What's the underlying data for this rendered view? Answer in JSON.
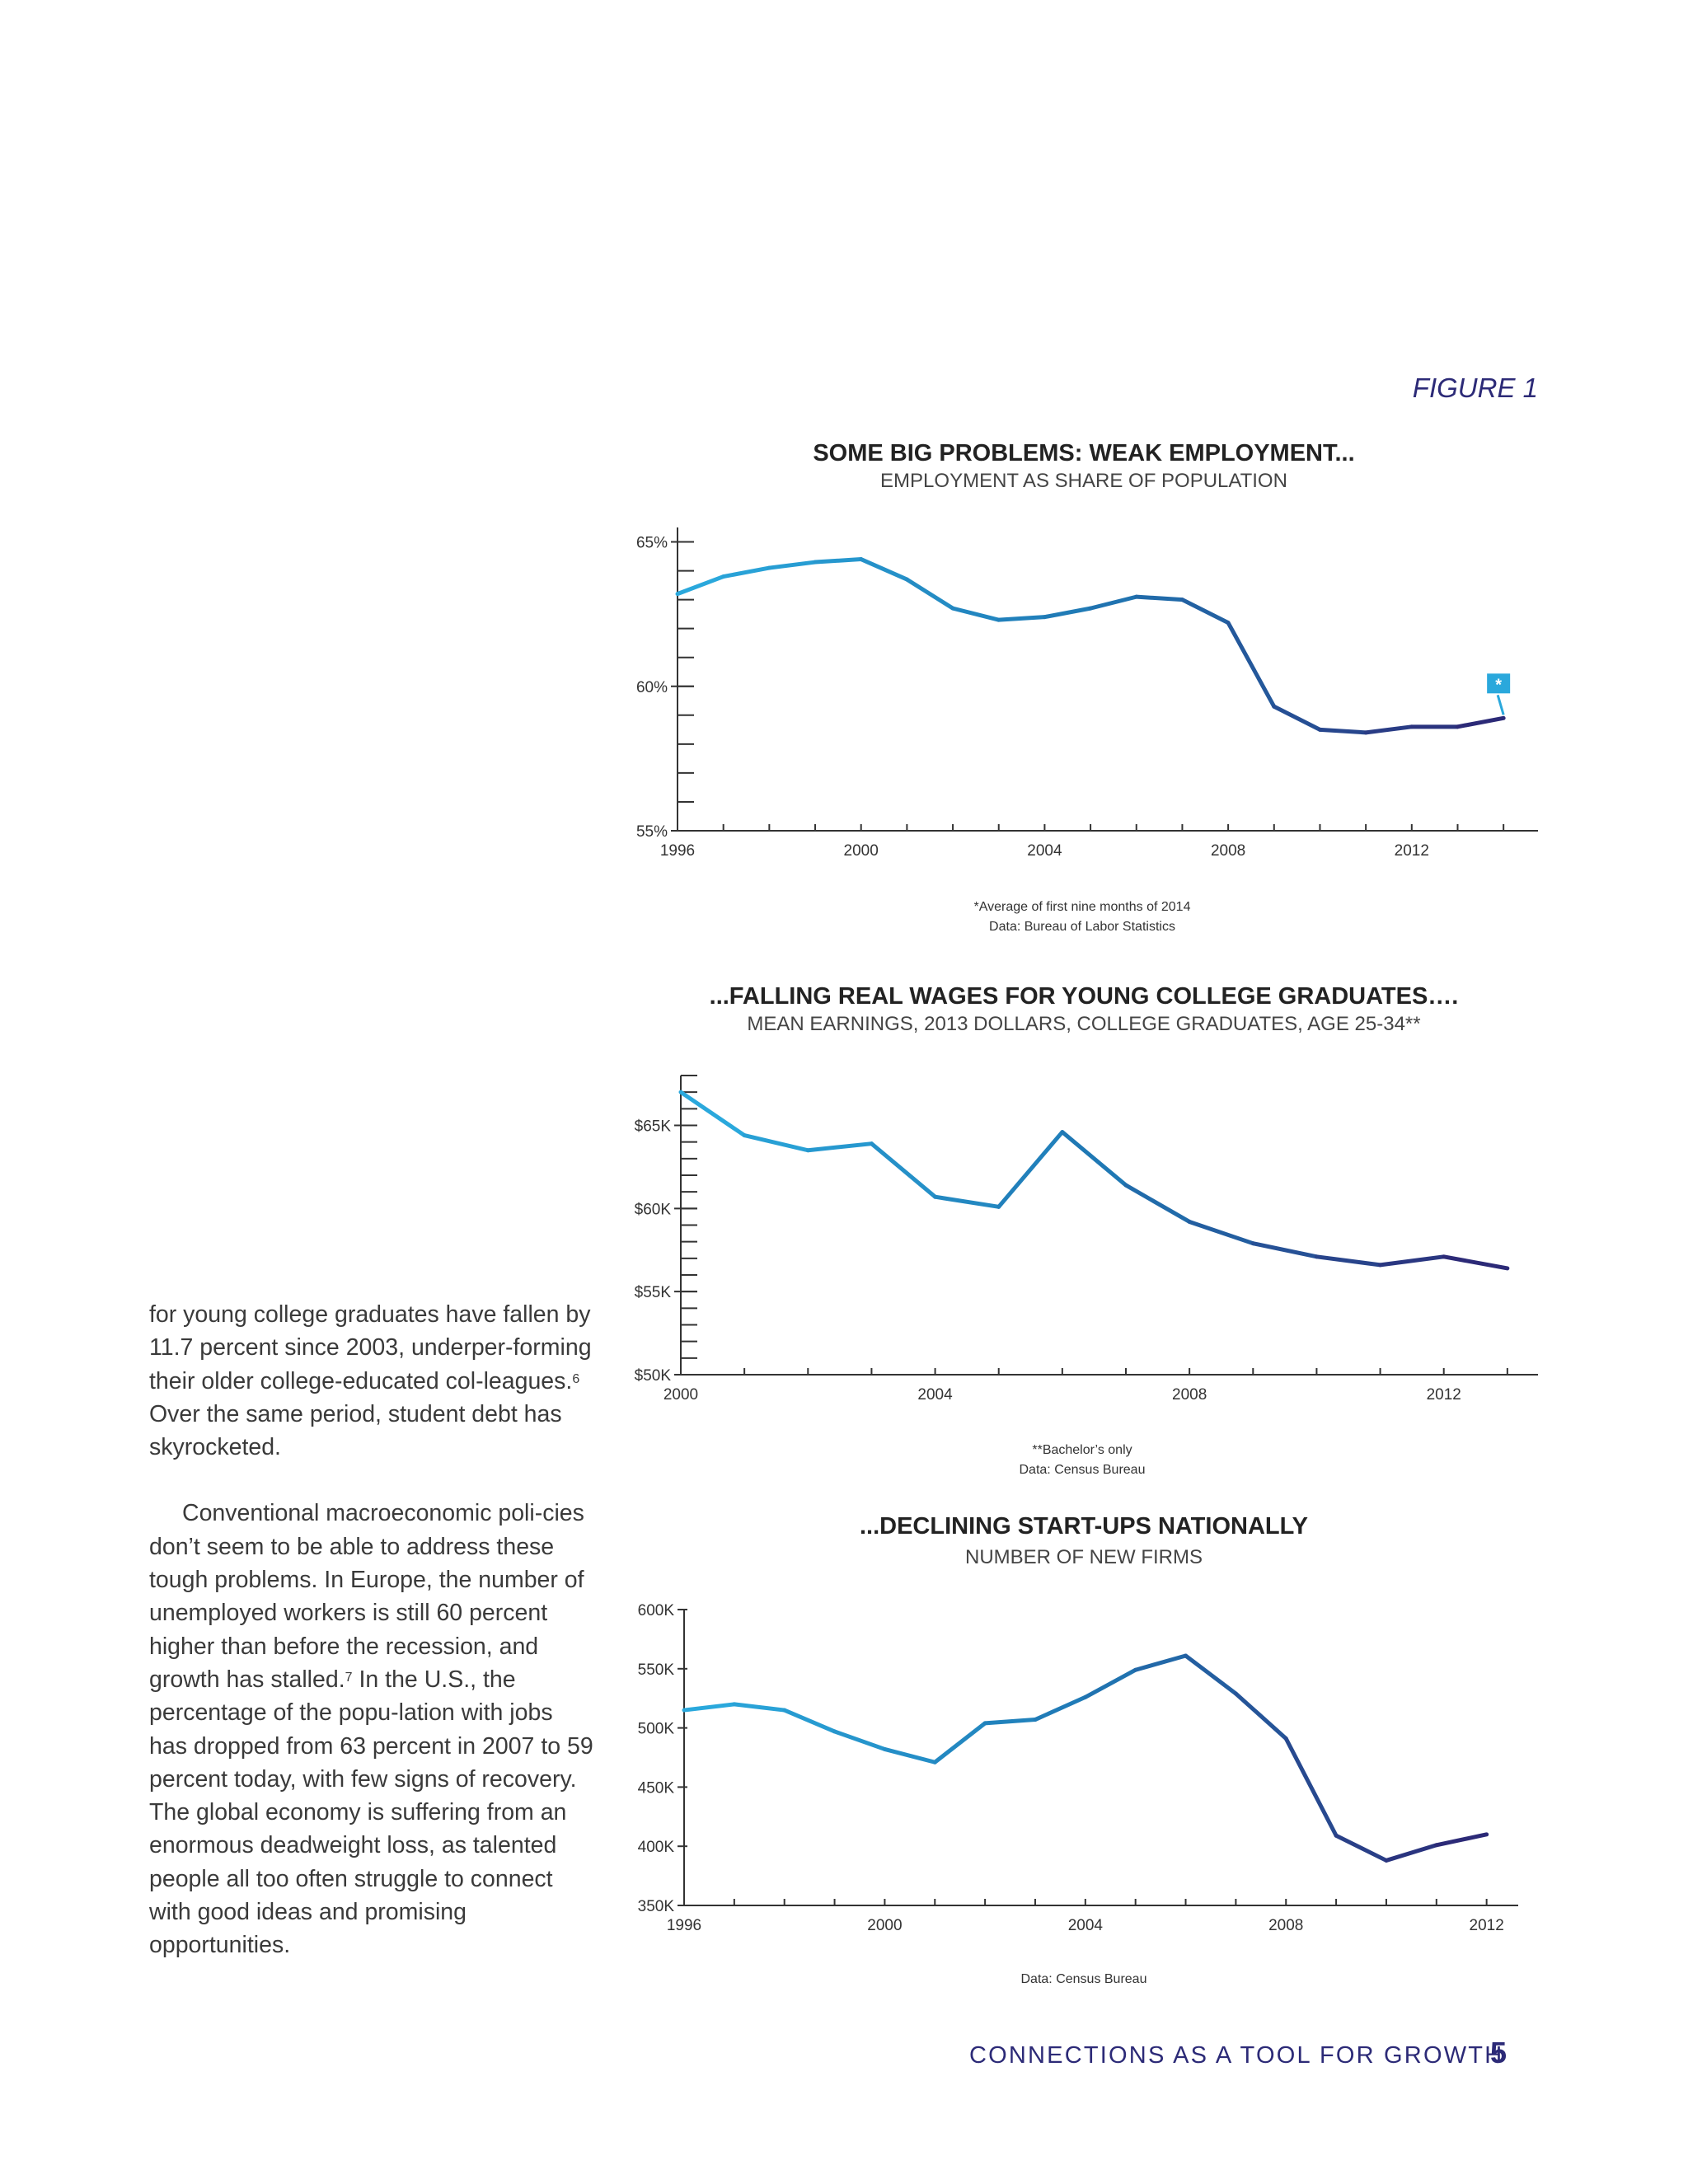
{
  "figure_label": "FIGURE 1",
  "body_text": {
    "para1_a": "for young college graduates have fallen by 11.7 percent since 2003, underper-forming their older college-educated col-leagues.",
    "para1_sup": "6",
    "para1_b": " Over the same period, student debt has skyrocketed.",
    "para2_a": "Conventional macroeconomic poli-cies don’t seem to be able to address these tough problems. In Europe, the number of unemployed workers is still 60 percent higher than before the recession, and growth has stalled.",
    "para2_sup": "7",
    "para2_b": " In the U.S., the percentage of the popu-lation with jobs has dropped from 63 percent in 2007 to 59 percent today, with few signs of recovery. The global economy is suffering from an enormous deadweight loss, as talented people all too often struggle to connect with good ideas and promising opportunities."
  },
  "footer": {
    "text": "CONNECTIONS AS A TOOL FOR GROWTH",
    "page_number": "5"
  },
  "colors": {
    "line_start": "#2aa8dc",
    "line_mid": "#1f78b4",
    "line_end": "#2c2a77",
    "axis": "#333333",
    "marker": "#2aa8dc",
    "footer": "#2c2a77"
  },
  "chart_data": [
    {
      "type": "line",
      "title": "SOME BIG PROBLEMS: WEAK EMPLOYMENT...",
      "subtitle": "EMPLOYMENT AS SHARE OF POPULATION",
      "x": [
        1996,
        1997,
        1998,
        1999,
        2000,
        2001,
        2002,
        2003,
        2004,
        2005,
        2006,
        2007,
        2008,
        2009,
        2010,
        2011,
        2012,
        2013,
        2014
      ],
      "series": [
        {
          "values": [
            63.2,
            63.8,
            64.1,
            64.3,
            64.4,
            63.7,
            62.7,
            62.3,
            62.4,
            62.7,
            63.1,
            63.0,
            62.2,
            59.3,
            58.5,
            58.4,
            58.6,
            58.6,
            58.9
          ]
        }
      ],
      "xlim": [
        1996,
        2014.5
      ],
      "ylim": [
        55,
        65.5
      ],
      "x_ticks": [
        1996,
        2000,
        2004,
        2008,
        2012
      ],
      "x_tick_labels": [
        "1996",
        "2000",
        "2004",
        "2008",
        "2012"
      ],
      "x_minor_step": 1,
      "y_ticks": [
        55,
        60,
        65
      ],
      "y_tick_labels": [
        "55%",
        "60%",
        "65%"
      ],
      "y_minor_step": 1,
      "annotation": {
        "text": "*",
        "x": 2014
      },
      "notes": [
        "*Average of first nine months of 2014",
        "Data: Bureau of Labor Statistics"
      ],
      "grid": false
    },
    {
      "type": "line",
      "title": "...FALLING REAL WAGES FOR YOUNG COLLEGE GRADUATES….",
      "subtitle": "MEAN EARNINGS, 2013 DOLLARS, COLLEGE GRADUATES, AGE 25-34**",
      "x": [
        2000,
        2001,
        2002,
        2003,
        2004,
        2005,
        2006,
        2007,
        2008,
        2009,
        2010,
        2011,
        2012,
        2013
      ],
      "series": [
        {
          "values": [
            67.0,
            64.4,
            63.5,
            63.9,
            60.7,
            60.1,
            64.6,
            61.4,
            59.2,
            57.9,
            57.1,
            56.6,
            57.1,
            56.4
          ]
        }
      ],
      "xlim": [
        2000,
        2013.3
      ],
      "ylim": [
        50,
        68
      ],
      "x_ticks": [
        2000,
        2004,
        2008,
        2012
      ],
      "x_tick_labels": [
        "2000",
        "2004",
        "2008",
        "2012"
      ],
      "x_minor_step": 1,
      "y_ticks": [
        50,
        55,
        60,
        65
      ],
      "y_tick_labels": [
        "$50K",
        "$55K",
        "$60K",
        "$65K"
      ],
      "y_minor_step": 1,
      "notes": [
        "**Bachelor’s only",
        "Data: Census Bureau"
      ],
      "grid": false
    },
    {
      "type": "line",
      "title": "...DECLINING START-UPS NATIONALLY",
      "subtitle": "NUMBER OF NEW FIRMS",
      "x": [
        1996,
        1997,
        1998,
        1999,
        2000,
        2001,
        2002,
        2003,
        2004,
        2005,
        2006,
        2007,
        2008,
        2009,
        2010,
        2011,
        2012
      ],
      "series": [
        {
          "values": [
            515,
            520,
            515,
            497,
            482,
            471,
            504,
            507,
            526,
            549,
            561,
            529,
            491,
            409,
            388,
            401,
            410
          ]
        }
      ],
      "xlim": [
        1996,
        2012.4
      ],
      "ylim": [
        350,
        600
      ],
      "x_ticks": [
        1996,
        2000,
        2004,
        2008,
        2012
      ],
      "x_tick_labels": [
        "1996",
        "2000",
        "2004",
        "2008",
        "2012"
      ],
      "x_minor_step": 1,
      "y_ticks": [
        350,
        400,
        450,
        500,
        550,
        600
      ],
      "y_tick_labels": [
        "350K",
        "400K",
        "450K",
        "500K",
        "550K",
        "600K"
      ],
      "y_minor_step": null,
      "notes": [
        "Data: Census Bureau"
      ],
      "grid": false
    }
  ]
}
